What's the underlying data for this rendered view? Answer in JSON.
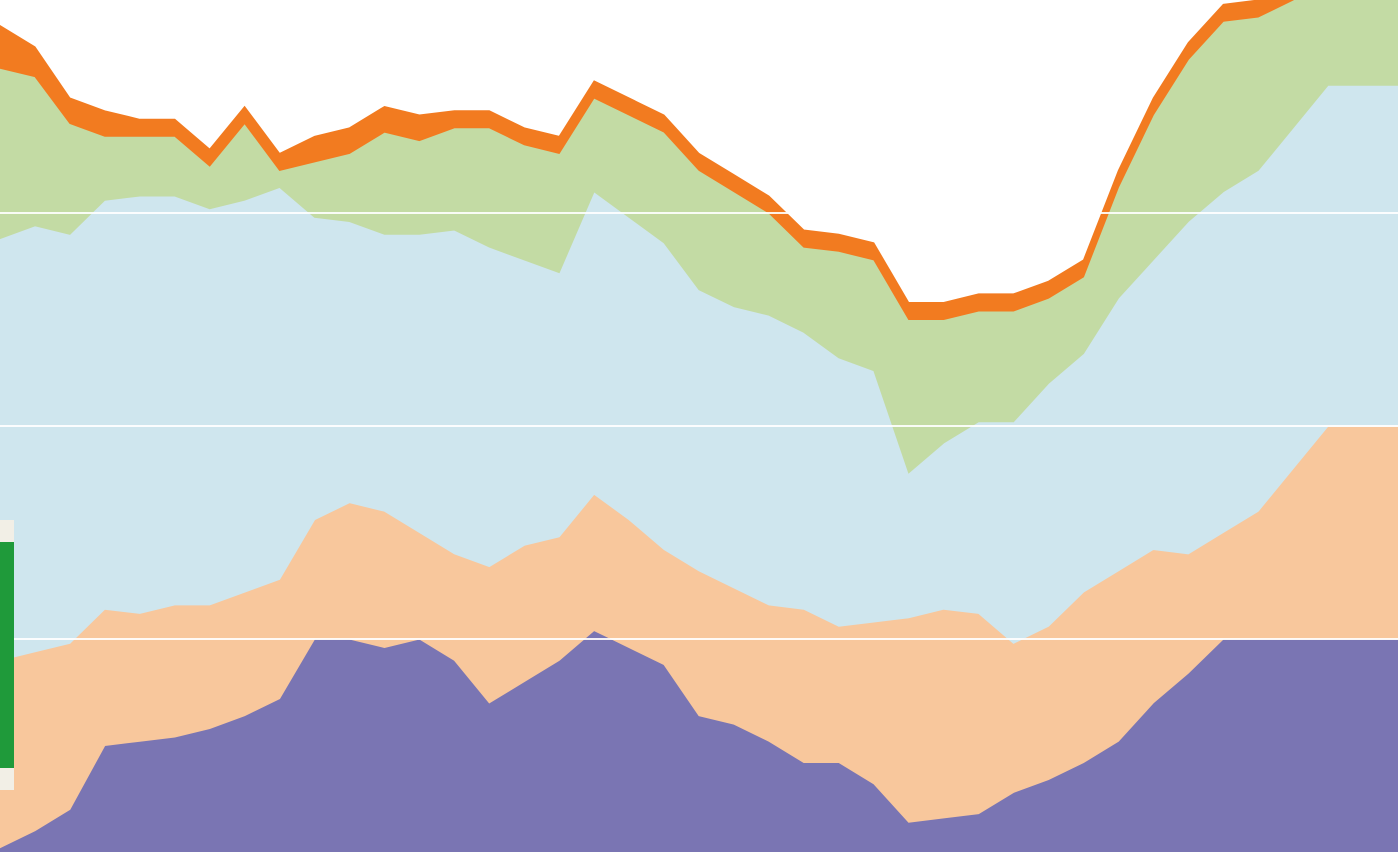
{
  "chart_data": {
    "type": "area",
    "stacked": true,
    "title": "",
    "xlabel": "",
    "ylabel": "",
    "x": [
      0,
      1,
      2,
      3,
      4,
      5,
      6,
      7,
      8,
      9,
      10,
      11,
      12,
      13,
      14,
      15,
      16,
      17,
      18,
      19,
      20,
      21,
      22,
      23,
      24,
      25,
      26,
      27,
      28,
      29,
      30,
      31,
      32,
      33,
      34,
      35,
      36,
      37,
      38,
      39,
      40
    ],
    "ylim": [
      0,
      100
    ],
    "grid": true,
    "gridlines": [
      25,
      50,
      75
    ],
    "series": [
      {
        "color": "#7a75b3",
        "values": [
          0.5,
          2.5,
          5,
          12.5,
          13,
          13.5,
          14.5,
          16,
          18,
          25,
          25,
          24,
          25,
          22.5,
          17.5,
          20,
          22.5,
          26,
          24,
          22,
          16,
          15,
          13,
          10.5,
          10.5,
          8,
          3.5,
          4,
          4.5,
          7,
          8.5,
          10.5,
          13,
          17.5,
          21,
          25,
          25,
          25,
          25,
          25,
          25
        ]
      },
      {
        "color": "#f8c79c",
        "values": [
          22,
          21,
          19.5,
          16,
          15,
          15.5,
          14.5,
          14.5,
          14,
          14,
          16,
          16,
          12.5,
          12.5,
          16,
          16,
          14.5,
          16,
          15,
          13.5,
          17,
          16,
          16,
          18,
          16,
          19,
          24,
          24.5,
          23.5,
          17.5,
          18,
          20,
          20,
          18,
          14,
          12.5,
          15,
          20,
          25,
          25,
          25
        ]
      },
      {
        "color": "#cfe6ee",
        "values": [
          49.5,
          50,
          48,
          48,
          49,
          48,
          46.5,
          46,
          46,
          35.5,
          33,
          32.5,
          35,
          38,
          37.5,
          33.5,
          31,
          35.5,
          35.5,
          36,
          33,
          33,
          34,
          32.5,
          31.5,
          29.5,
          17,
          19.5,
          22.5,
          26,
          28.5,
          28,
          32,
          34,
          39,
          40,
          40,
          40,
          40,
          40,
          40
        ]
      },
      {
        "color": "#c3dba4",
        "values": [
          20,
          17.5,
          13,
          7.5,
          7,
          7,
          5,
          9,
          2,
          6.5,
          8,
          12,
          11,
          12,
          14,
          13.5,
          14,
          11,
          12,
          13,
          14,
          13.5,
          12,
          10,
          12.5,
          13,
          18,
          14.5,
          13,
          13,
          10,
          9,
          13,
          17,
          19,
          20,
          18,
          15,
          14,
          14,
          14
        ]
      },
      {
        "color": "#f27b20",
        "values": [
          5,
          3.5,
          3,
          3,
          2,
          2,
          2,
          2,
          2,
          3,
          3,
          3,
          3,
          2,
          2,
          2,
          2,
          2,
          2,
          2,
          2,
          2,
          2,
          2,
          2,
          2,
          2,
          2,
          2,
          2,
          2,
          2,
          2,
          2,
          2,
          2,
          2,
          2,
          2,
          2,
          2
        ]
      }
    ]
  }
}
